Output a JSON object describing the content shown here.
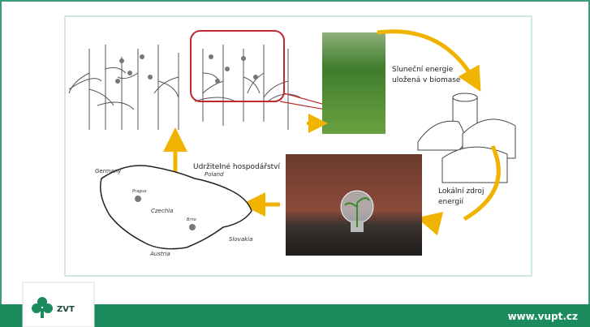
{
  "diagram": {
    "solar_text": [
      "Sluneční energie",
      "uložená v biomase"
    ],
    "local_text": [
      "Lokální zdroj",
      "energií"
    ],
    "sustainable_text": "Udržitelné hospodářství",
    "map_labels": [
      "Germany",
      "Poland",
      "Czechia",
      "Prague",
      "Brno",
      "Slovakia",
      "Austria"
    ]
  },
  "footer": {
    "logo_text": "ZVT",
    "url": "www.vupt.cz"
  }
}
